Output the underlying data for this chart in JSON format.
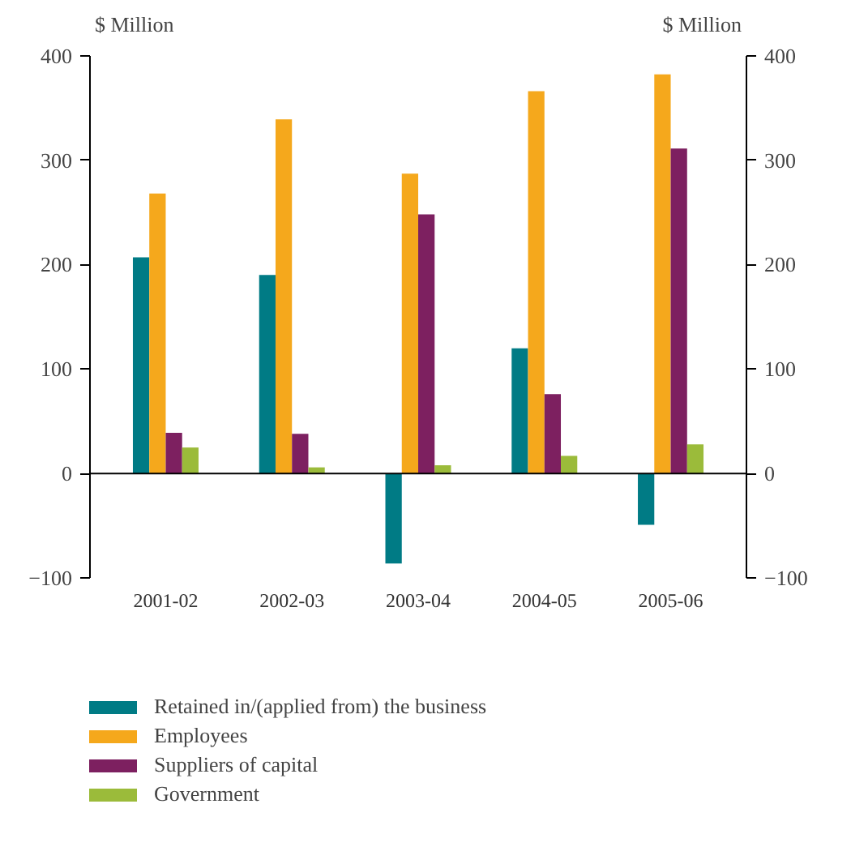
{
  "chart_data": {
    "type": "bar",
    "ylabel": "$ Million",
    "y2label": "$ Million",
    "categories": [
      "2001-02",
      "2002-03",
      "2003-04",
      "2004-05",
      "2005-06"
    ],
    "series": [
      {
        "name": "Retained in/(applied from) the business",
        "color": "#007b85",
        "values": [
          207,
          190,
          -86,
          120,
          -49
        ]
      },
      {
        "name": "Employees",
        "color": "#f5a81c",
        "values": [
          268,
          339,
          287,
          366,
          382
        ]
      },
      {
        "name": "Suppliers of capital",
        "color": "#7d2060",
        "values": [
          39,
          38,
          248,
          76,
          311
        ]
      },
      {
        "name": "Government",
        "color": "#9bbb3a",
        "values": [
          25,
          6,
          8,
          17,
          28
        ]
      }
    ],
    "ylim": [
      -100,
      400
    ],
    "yticks": [
      -100,
      0,
      100,
      200,
      300,
      400
    ],
    "y2lim": [
      -100,
      400
    ],
    "y2ticks": [
      -100,
      0,
      100,
      200,
      300,
      400
    ],
    "ref_lines": [
      {
        "axis": "y",
        "value": 0
      }
    ],
    "grid": false,
    "legend": "bottom"
  }
}
